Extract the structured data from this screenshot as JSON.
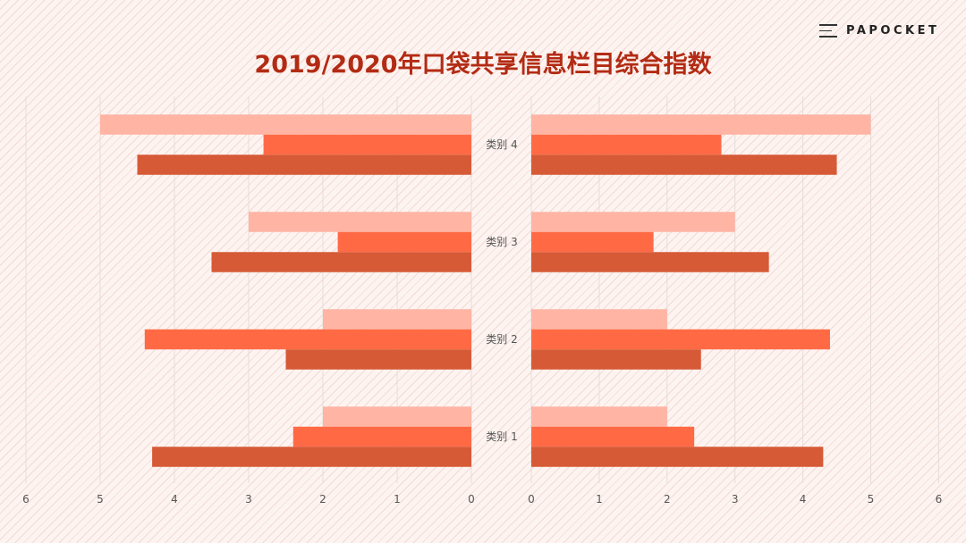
{
  "brand": {
    "name": "PAPOCKET",
    "icon": "menu-icon"
  },
  "title": "2019/2020年口袋共享信息栏目综合指数",
  "colors": {
    "series1": "#ffb4a4",
    "series2": "#ff6a45",
    "series3": "#d65a36",
    "title": "#b32b14",
    "grid": "#e6dcd9",
    "tick": "#555555"
  },
  "chart_data": [
    {
      "type": "bar",
      "orientation": "horizontal",
      "direction": "right-to-left",
      "categories": [
        "类别 1",
        "类别 2",
        "类别 3",
        "类别 4"
      ],
      "series": [
        {
          "values": [
            2,
            2,
            3,
            5
          ]
        },
        {
          "values": [
            2.4,
            4.4,
            1.8,
            2.8
          ]
        },
        {
          "values": [
            4.3,
            2.5,
            3.5,
            4.5
          ]
        }
      ],
      "xlim": [
        0,
        6
      ],
      "xticks": [
        "0",
        "1",
        "2",
        "3",
        "4",
        "5",
        "6"
      ],
      "grid": true
    },
    {
      "type": "bar",
      "orientation": "horizontal",
      "direction": "left-to-right",
      "categories": [
        "类别 1",
        "类别 2",
        "类别 3",
        "类别 4"
      ],
      "series": [
        {
          "values": [
            2,
            2,
            3,
            5
          ]
        },
        {
          "values": [
            2.4,
            4.4,
            1.8,
            2.8
          ]
        },
        {
          "values": [
            4.3,
            2.5,
            3.5,
            4.5
          ]
        }
      ],
      "xlim": [
        0,
        6
      ],
      "xticks": [
        "0",
        "1",
        "2",
        "3",
        "4",
        "5",
        "6"
      ],
      "grid": true
    }
  ]
}
